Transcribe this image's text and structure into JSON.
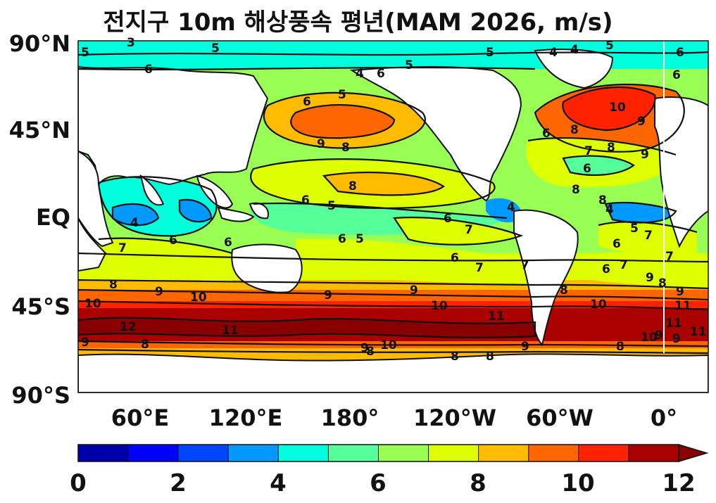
{
  "title": "전지구 10m 해상풍속 평년(MAM 2026, m/s)",
  "map": {
    "lat_ticks": [
      "90°N",
      "45°N",
      "EQ",
      "45°S",
      "90°S"
    ],
    "lon_ticks": [
      "60°E",
      "120°E",
      "180°",
      "120°W",
      "60°W",
      "0°"
    ]
  },
  "colorbar": {
    "min": 0,
    "max": 12,
    "extend": "max",
    "tick_labels": [
      "0",
      "2",
      "4",
      "6",
      "8",
      "10",
      "12"
    ],
    "colors": [
      "#0000aa",
      "#0000ff",
      "#0044ff",
      "#0099ff",
      "#00ffdd",
      "#55ff99",
      "#99ff55",
      "#ddff00",
      "#ffbb00",
      "#ff6600",
      "#ff2200",
      "#aa0000"
    ],
    "extend_color": "#880000"
  },
  "contour_labels": [
    "5",
    "3",
    "4",
    "6",
    "5",
    "5",
    "6",
    "5",
    "4",
    "4",
    "5",
    "6",
    "6",
    "5",
    "6",
    "9",
    "8",
    "8",
    "10",
    "9",
    "8",
    "6",
    "7",
    "8",
    "9",
    "8",
    "8",
    "4",
    "6",
    "4",
    "5",
    "6",
    "7",
    "6",
    "5",
    "6",
    "7",
    "6",
    "6",
    "4",
    "6",
    "6",
    "5",
    "7",
    "7",
    "6",
    "7",
    "7",
    "8",
    "9",
    "9",
    "9",
    "10",
    "9",
    "10",
    "10",
    "9",
    "11",
    "12",
    "11",
    "11",
    "10",
    "9",
    "8",
    "8",
    "9",
    "10",
    "8",
    "9",
    "8",
    "8",
    "9",
    "8",
    "10",
    "11",
    "11",
    "9",
    "7",
    "8"
  ]
}
